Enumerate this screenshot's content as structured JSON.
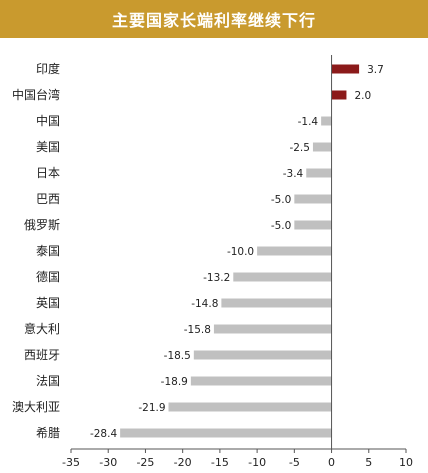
{
  "chart_data": {
    "type": "bar",
    "orientation": "horizontal",
    "title": "主要国家长端利率继续下行",
    "categories": [
      "印度",
      "中国台湾",
      "中国",
      "美国",
      "日本",
      "巴西",
      "俄罗斯",
      "泰国",
      "德国",
      "英国",
      "意大利",
      "西班牙",
      "法国",
      "澳大利亚",
      "希腊"
    ],
    "values": [
      3.7,
      2.0,
      -1.4,
      -2.5,
      -3.4,
      -5.0,
      -5.0,
      -10.0,
      -13.2,
      -14.8,
      -15.8,
      -18.5,
      -18.9,
      -21.9,
      -28.4
    ],
    "value_labels": [
      "3.7",
      "2.0",
      "-1.4",
      "-2.5",
      "-3.4",
      "-5.0",
      "-5.0",
      "-10.0",
      "-13.2",
      "-14.8",
      "-15.8",
      "-18.5",
      "-18.9",
      "-21.9",
      "-28.4"
    ],
    "xlim": [
      -35,
      10
    ],
    "xticks": [
      -35,
      -30,
      -25,
      -20,
      -15,
      -10,
      -5,
      0,
      5,
      10
    ],
    "xtick_labels": [
      "-35",
      "-30",
      "-25",
      "-20",
      "-15",
      "-10",
      "-5",
      "0",
      "5",
      "10"
    ],
    "colors": {
      "positive": "#8b1a1a",
      "negative": "#c0c0c0",
      "banner": "#c99a2e"
    },
    "grid": false
  }
}
